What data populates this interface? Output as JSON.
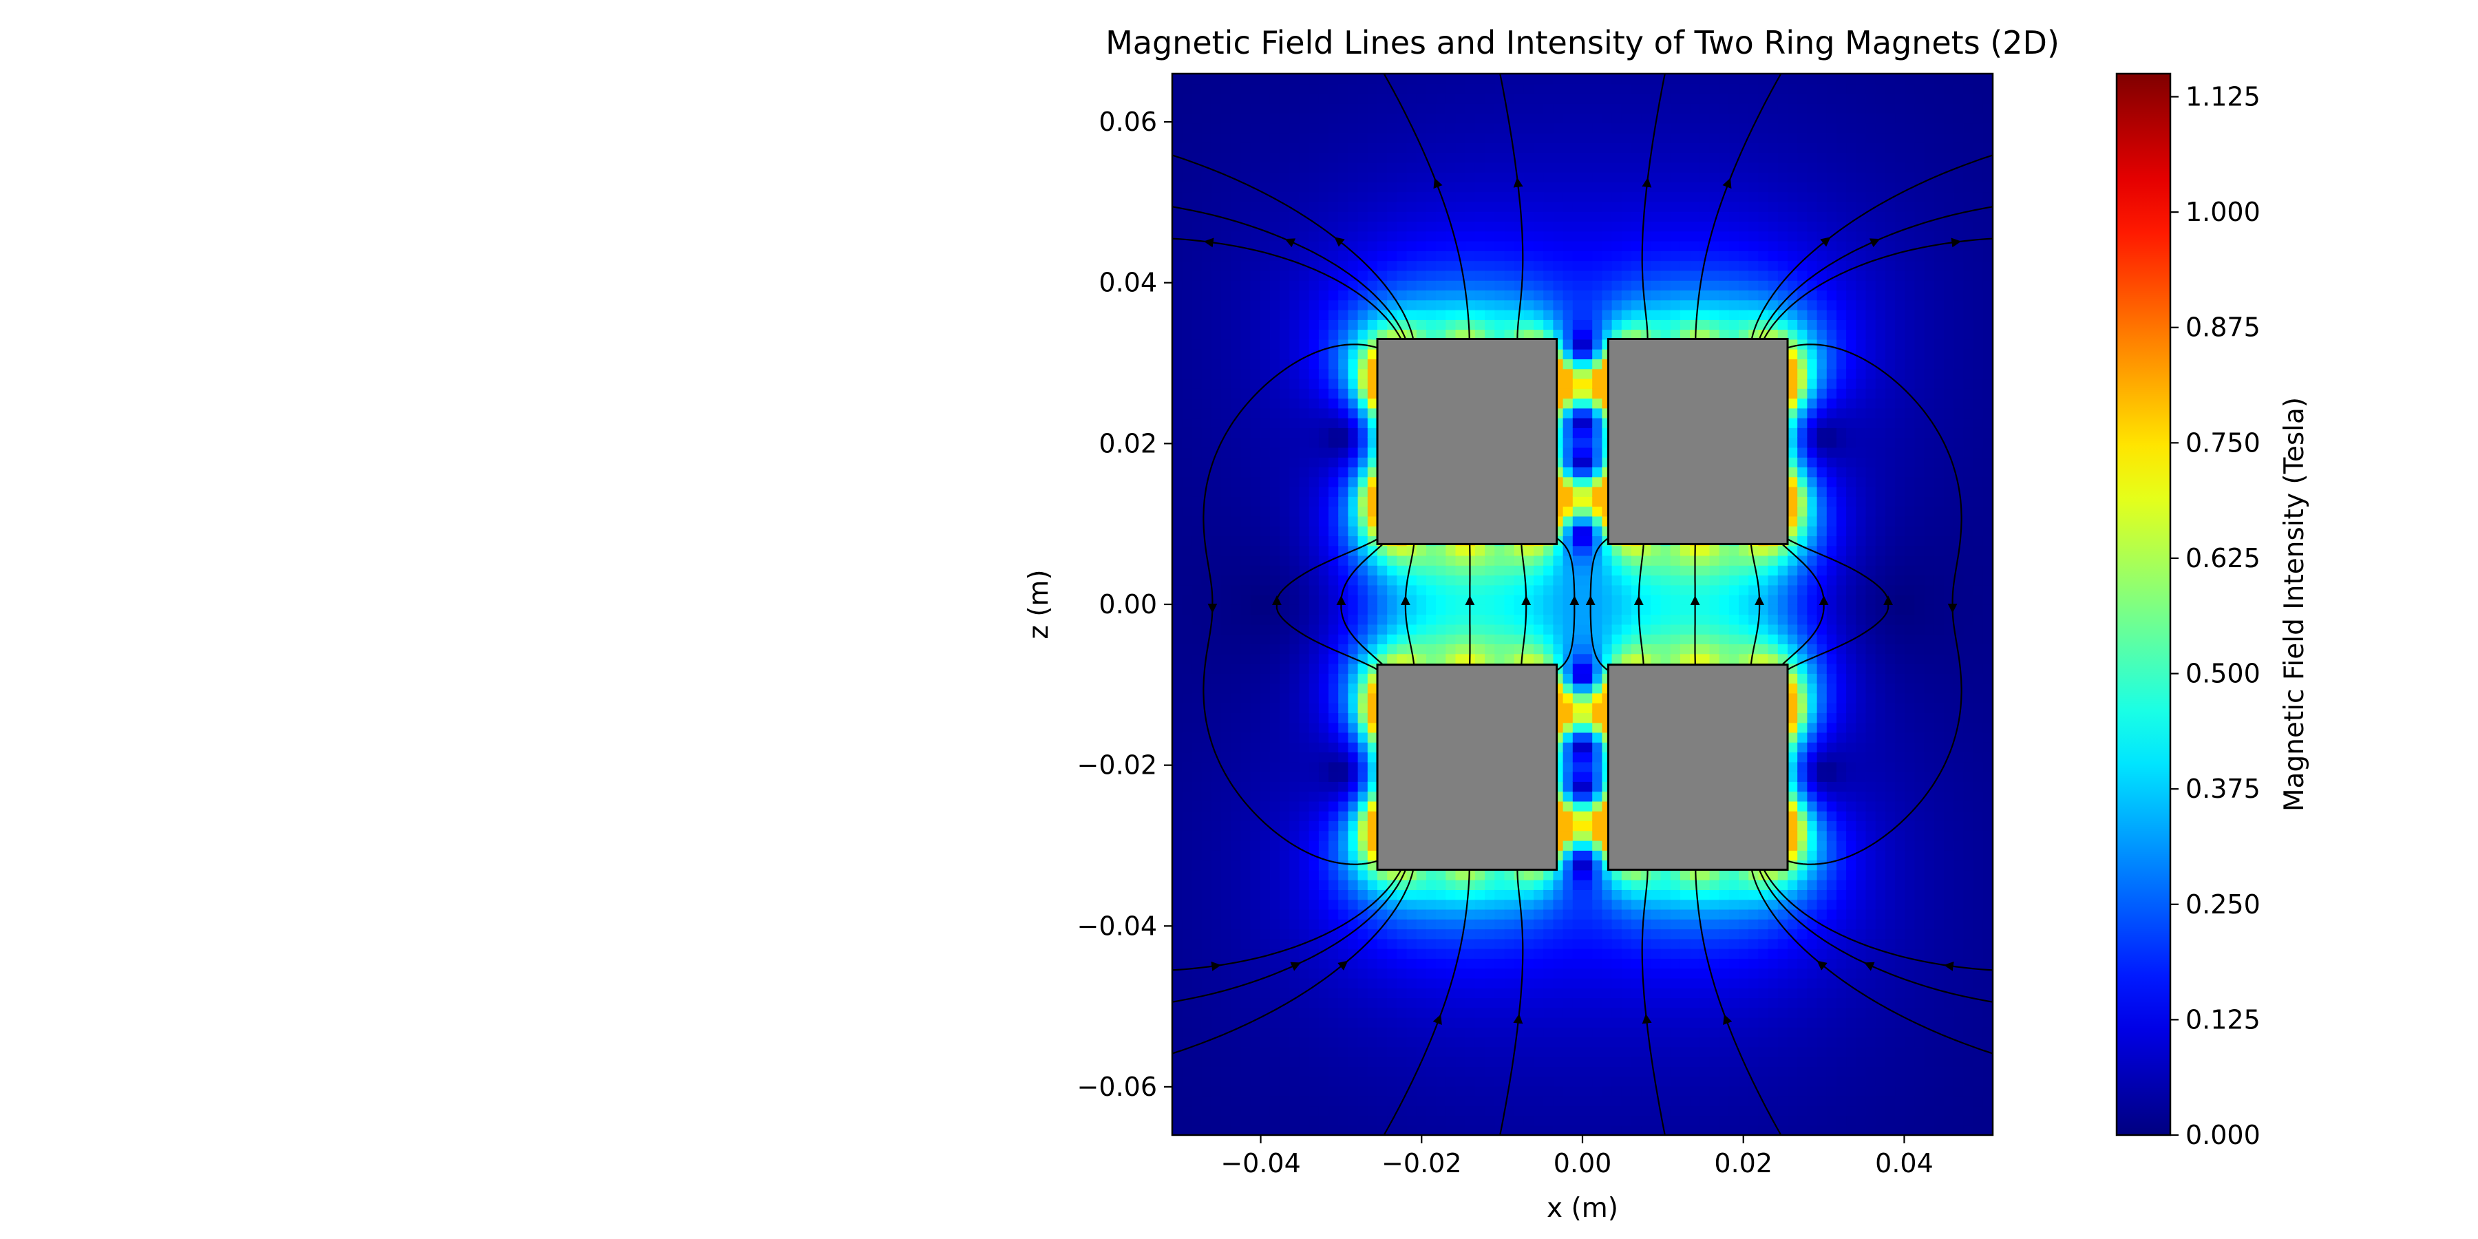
{
  "chart_data": {
    "type": "heatmap",
    "title": "Magnetic Field Lines and Intensity of Two Ring Magnets (2D)",
    "xlabel": "x (m)",
    "ylabel": "z (m)",
    "xlim": [
      -0.051,
      0.051
    ],
    "ylim": [
      -0.066,
      0.066
    ],
    "x_ticks": [
      {
        "value": -0.04,
        "label": "−0.04"
      },
      {
        "value": -0.02,
        "label": "−0.02"
      },
      {
        "value": 0.0,
        "label": "0.00"
      },
      {
        "value": 0.02,
        "label": "0.02"
      },
      {
        "value": 0.04,
        "label": "0.04"
      }
    ],
    "y_ticks": [
      {
        "value": -0.06,
        "label": "−0.06"
      },
      {
        "value": -0.04,
        "label": "−0.04"
      },
      {
        "value": -0.02,
        "label": "−0.02"
      },
      {
        "value": 0.0,
        "label": "0.00"
      },
      {
        "value": 0.02,
        "label": "0.02"
      },
      {
        "value": 0.04,
        "label": "0.04"
      },
      {
        "value": 0.06,
        "label": "0.06"
      }
    ],
    "colormap": "jet",
    "colorbar": {
      "label": "Magnetic Field Intensity (Tesla)",
      "range": [
        0.0,
        1.15
      ],
      "ticks": [
        {
          "value": 0.0,
          "label": "0.000"
        },
        {
          "value": 0.125,
          "label": "0.125"
        },
        {
          "value": 0.25,
          "label": "0.250"
        },
        {
          "value": 0.375,
          "label": "0.375"
        },
        {
          "value": 0.5,
          "label": "0.500"
        },
        {
          "value": 0.625,
          "label": "0.625"
        },
        {
          "value": 0.75,
          "label": "0.750"
        },
        {
          "value": 0.875,
          "label": "0.875"
        },
        {
          "value": 1.0,
          "label": "1.000"
        },
        {
          "value": 1.125,
          "label": "1.125"
        }
      ]
    },
    "magnets": [
      {
        "x": [
          -0.0255,
          -0.0032
        ],
        "z": [
          0.0075,
          0.033
        ]
      },
      {
        "x": [
          0.0032,
          0.0255
        ],
        "z": [
          0.0075,
          0.033
        ]
      },
      {
        "x": [
          -0.0255,
          -0.0032
        ],
        "z": [
          -0.033,
          -0.0075
        ]
      },
      {
        "x": [
          0.0032,
          0.0255
        ],
        "z": [
          -0.033,
          -0.0075
        ]
      }
    ],
    "magnet_color": "#808080",
    "streamlines": true,
    "streamline_color": "#000000"
  }
}
